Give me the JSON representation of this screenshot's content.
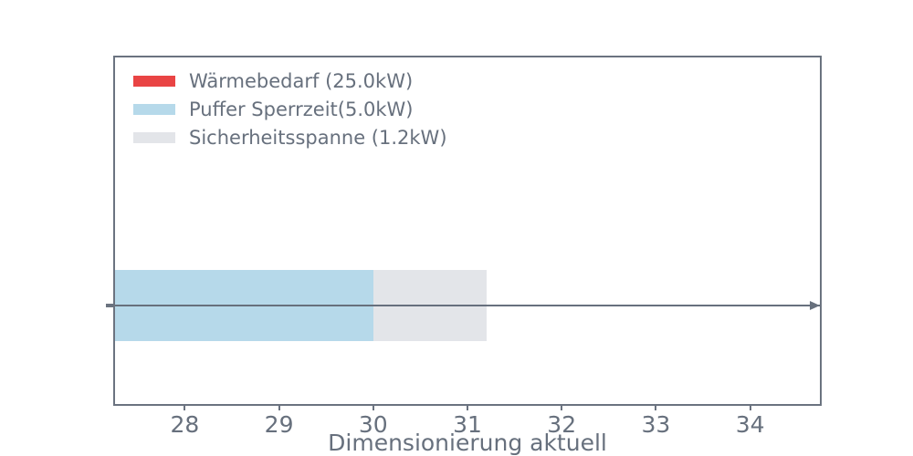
{
  "colors": {
    "background": "#ffffff",
    "text": "#67707d",
    "spine": "#6b7380",
    "arrow": "#67707d"
  },
  "chart_data": {
    "type": "bar",
    "orientation": "horizontal",
    "title": "",
    "xlabel": "Dimensionierung aktuell",
    "ylabel": "",
    "xlim": [
      27.26,
      34.74
    ],
    "xticks": [
      28,
      29,
      30,
      31,
      32,
      33,
      34
    ],
    "grid": false,
    "legend_position": "upper-left",
    "bar_y_center_frac": 0.716,
    "bar_height_frac": 0.205,
    "segments": [
      {
        "label": "Wärmebedarf (25.0kW)",
        "color": "#e94444",
        "start": 0.0,
        "end": 25.0,
        "value_kw": 25.0
      },
      {
        "label": "Puffer Sperrzeit(5.0kW)",
        "color": "#b6d9ea",
        "start": 25.0,
        "end": 30.0,
        "value_kw": 5.0
      },
      {
        "label": "Sicherheitsspanne (1.2kW)",
        "color": "#e3e5e9",
        "start": 30.0,
        "end": 31.2,
        "value_kw": 1.2
      }
    ],
    "arrow": {
      "direction": "right",
      "spans_full_width": true
    }
  }
}
